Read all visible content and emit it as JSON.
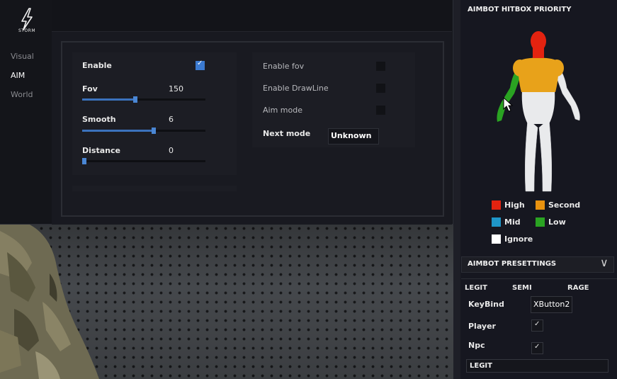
{
  "logo": {
    "text": "STORM",
    "icon": "lightning-bolt-icon"
  },
  "nav": [
    {
      "label": "Visual",
      "active": false
    },
    {
      "label": "AIM",
      "active": true
    },
    {
      "label": "World",
      "active": false
    }
  ],
  "aim": {
    "enable": {
      "label": "Enable",
      "checked": true
    },
    "fov": {
      "label": "Fov",
      "value": "150",
      "slider_fraction": 0.43
    },
    "smooth": {
      "label": "Smooth",
      "value": "6",
      "slider_fraction": 0.58
    },
    "distance": {
      "label": "Distance",
      "value": "0",
      "slider_fraction": 0.0
    },
    "enable_fov": {
      "label": "Enable fov",
      "checked": false
    },
    "enable_drawline": {
      "label": "Enable DrawLine",
      "checked": false
    },
    "aim_mode": {
      "label": "Aim mode",
      "checked": false
    },
    "next_mode": {
      "label": "Next mode",
      "value": "Unknown"
    }
  },
  "hitbox": {
    "title": "AIMBOT HITBOX PRIORITY",
    "legend": [
      {
        "label": "High",
        "color": "#e32310"
      },
      {
        "label": "Second",
        "color": "#e8920f"
      },
      {
        "label": "Mid",
        "color": "#1f96c8"
      },
      {
        "label": "Low",
        "color": "#2aa322"
      },
      {
        "label": "Ignore",
        "color": "#ffffff"
      }
    ],
    "body_colors": {
      "head": "#e32310",
      "torso": "#e8a21a",
      "left_arm": "#2aa322",
      "body": "#e9eaec"
    }
  },
  "presettings": {
    "title": "AIMBOT PRESETTINGS",
    "tabs": [
      "LEGIT",
      "SEMI",
      "RAGE"
    ],
    "keybind": {
      "label": "KeyBind",
      "value": "XButton2"
    },
    "player": {
      "label": "Player",
      "checked": true
    },
    "npc": {
      "label": "Npc",
      "checked": true
    },
    "preset_name": "LEGIT"
  },
  "colors": {
    "accent": "#3b7ad0",
    "panel": "#1c1d24",
    "background": "#131419"
  }
}
